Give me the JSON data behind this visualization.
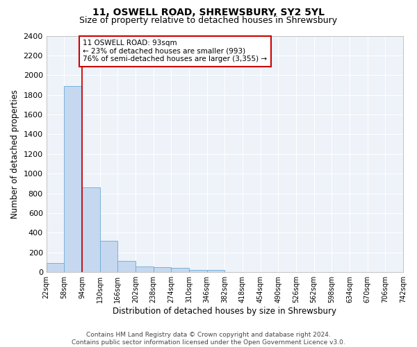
{
  "title": "11, OSWELL ROAD, SHREWSBURY, SY2 5YL",
  "subtitle": "Size of property relative to detached houses in Shrewsbury",
  "xlabel": "Distribution of detached houses by size in Shrewsbury",
  "ylabel": "Number of detached properties",
  "bar_values": [
    93,
    1890,
    860,
    315,
    115,
    58,
    50,
    45,
    25,
    20,
    0,
    0,
    0,
    0,
    0,
    0,
    0,
    0,
    0,
    0
  ],
  "bin_edges": [
    22,
    58,
    94,
    130,
    166,
    202,
    238,
    274,
    310,
    346,
    382,
    418,
    454,
    490,
    526,
    562,
    598,
    634,
    670,
    706,
    742
  ],
  "tick_labels": [
    "22sqm",
    "58sqm",
    "94sqm",
    "130sqm",
    "166sqm",
    "202sqm",
    "238sqm",
    "274sqm",
    "310sqm",
    "346sqm",
    "382sqm",
    "418sqm",
    "454sqm",
    "490sqm",
    "526sqm",
    "562sqm",
    "598sqm",
    "634sqm",
    "670sqm",
    "706sqm",
    "742sqm"
  ],
  "bar_color": "#c5d8f0",
  "bar_edge_color": "#6aaad4",
  "annotation_box_text": "11 OSWELL ROAD: 93sqm\n← 23% of detached houses are smaller (993)\n76% of semi-detached houses are larger (3,355) →",
  "annotation_box_color": "#ffffff",
  "annotation_box_edge_color": "#cc0000",
  "vline_color": "#cc0000",
  "ylim": [
    0,
    2400
  ],
  "yticks": [
    0,
    200,
    400,
    600,
    800,
    1000,
    1200,
    1400,
    1600,
    1800,
    2000,
    2200,
    2400
  ],
  "footer_line1": "Contains HM Land Registry data © Crown copyright and database right 2024.",
  "footer_line2": "Contains public sector information licensed under the Open Government Licence v3.0.",
  "bg_color": "#eef2f9",
  "grid_color": "#ffffff",
  "fig_bg_color": "#ffffff",
  "title_fontsize": 10,
  "subtitle_fontsize": 9,
  "axis_label_fontsize": 8.5,
  "tick_fontsize": 7,
  "annotation_fontsize": 7.5,
  "footer_fontsize": 6.5
}
